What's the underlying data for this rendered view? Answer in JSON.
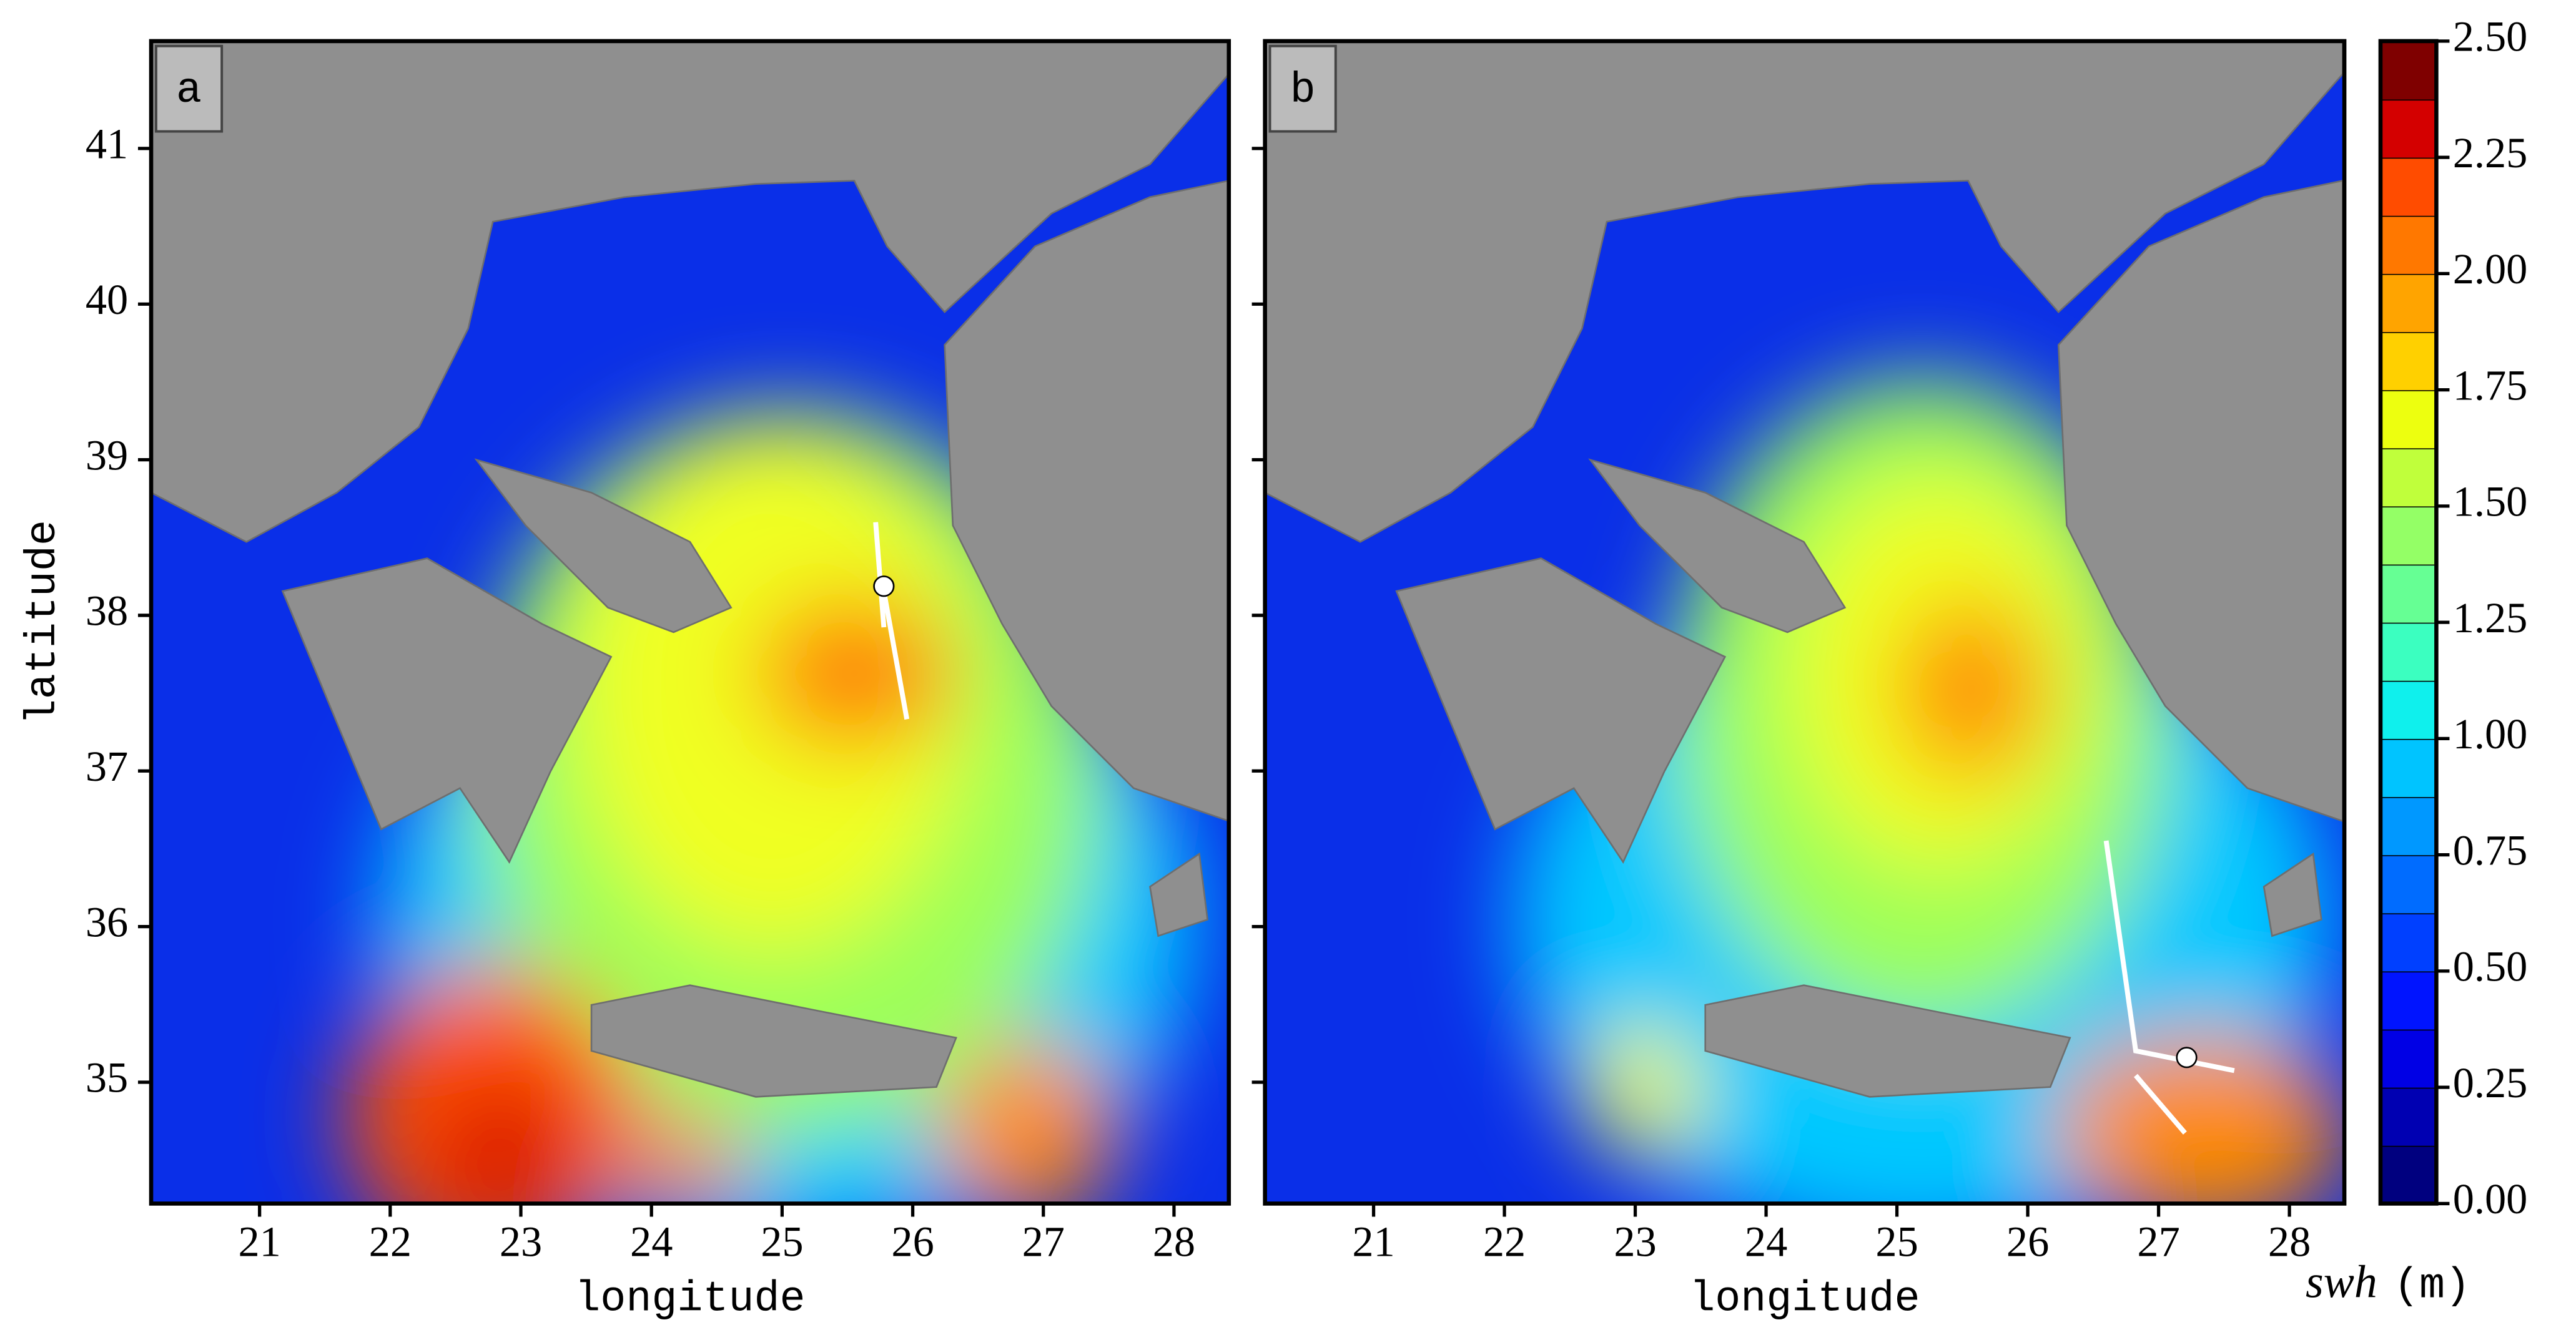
{
  "panels": [
    {
      "label": "a",
      "xlim": [
        20.17,
        28.42
      ],
      "ylim": [
        34.22,
        41.69
      ],
      "xticks": [
        21,
        22,
        23,
        24,
        25,
        26,
        27,
        28
      ],
      "yticks": [
        35,
        36,
        37,
        38,
        39,
        40,
        41
      ],
      "xlabel": "longitude",
      "ylabel": "latitude",
      "ytick_labels": true
    },
    {
      "label": "b",
      "xlim": [
        20.17,
        28.42
      ],
      "ylim": [
        34.22,
        41.69
      ],
      "xticks": [
        21,
        22,
        23,
        24,
        25,
        26,
        27,
        28
      ],
      "yticks": [
        35,
        36,
        37,
        38,
        39,
        40,
        41
      ],
      "xlabel": "longitude",
      "ytick_labels": false
    }
  ],
  "colorbar": {
    "label": "swh",
    "unit": "(m)",
    "lim": [
      0,
      2.5
    ],
    "ticks": [
      {
        "value": 0,
        "label": "0.00"
      },
      {
        "value": 0.25,
        "label": "0.25"
      },
      {
        "value": 0.5,
        "label": "0.50"
      },
      {
        "value": 0.75,
        "label": "0.75"
      },
      {
        "value": 1,
        "label": "1.00"
      },
      {
        "value": 1.25,
        "label": "1.25"
      },
      {
        "value": 1.5,
        "label": "1.50"
      },
      {
        "value": 1.75,
        "label": "1.75"
      },
      {
        "value": 2,
        "label": "2.00"
      },
      {
        "value": 2.25,
        "label": "2.25"
      },
      {
        "value": 2.5,
        "label": "2.50"
      }
    ],
    "colors": [
      "#00007f",
      "#0000b2",
      "#0000e5",
      "#0014ff",
      "#0040ff",
      "#006cff",
      "#0098ff",
      "#00c4ff",
      "#0ff0ed",
      "#3bffc0",
      "#66ff94",
      "#94ff66",
      "#c0ff3b",
      "#edff0f",
      "#ffd000",
      "#ffa400",
      "#ff7800",
      "#ff4c00",
      "#d40000",
      "#7f0000"
    ]
  }
}
